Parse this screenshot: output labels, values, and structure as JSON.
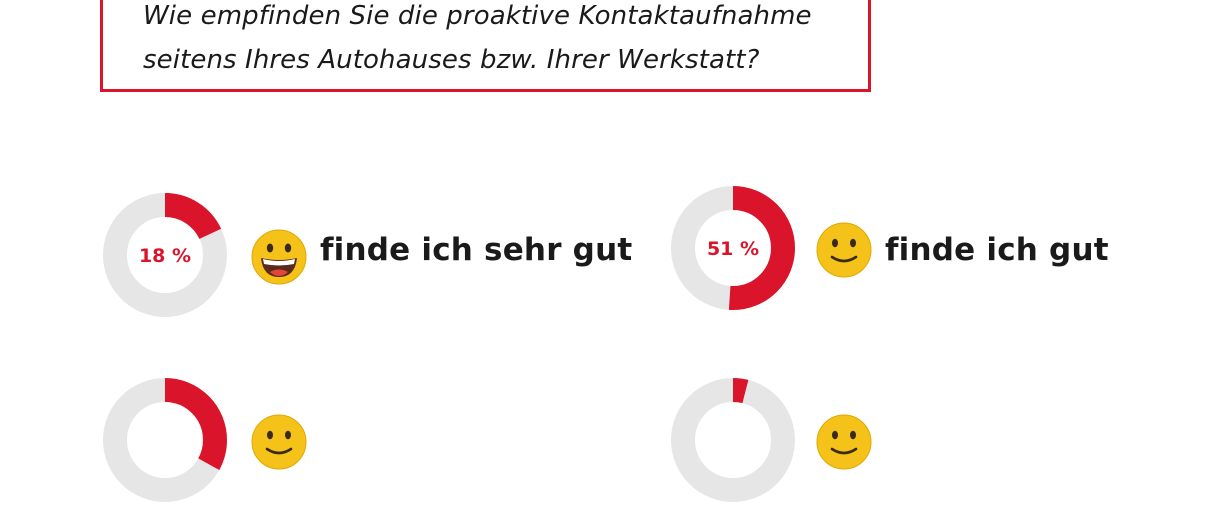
{
  "question": {
    "line1": "Wie empfinden Sie die proaktive Kontaktaufnahme",
    "line2": "seitens Ihres Autohauses bzw. Ihrer Werkstatt?"
  },
  "colors": {
    "accent": "#d9142b",
    "track": "#e6e6e6",
    "emoji": "#f5c21a"
  },
  "chart_data": {
    "type": "pie",
    "categories": [
      "finde ich sehr gut",
      "finde ich gut",
      "",
      ""
    ],
    "values": [
      18,
      51,
      33,
      4
    ],
    "value_labels": [
      "18 %",
      "51 %",
      "",
      ""
    ],
    "emoji_icons": [
      "grinning-face-icon",
      "slightly-smiling-face-icon",
      "smiling-face-icon",
      "smiling-face-icon"
    ]
  }
}
